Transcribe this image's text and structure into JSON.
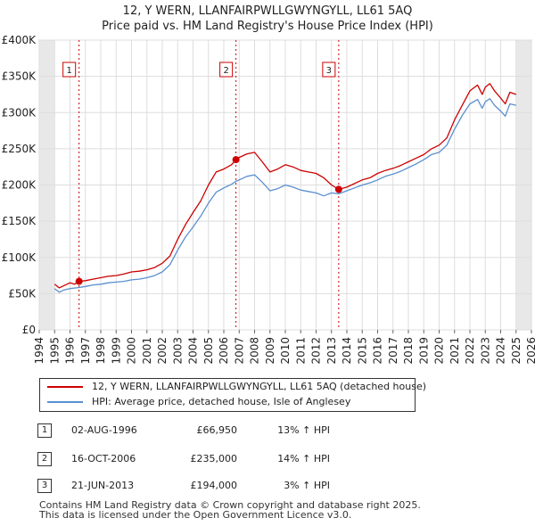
{
  "title_line1": "12, Y WERN, LLANFAIRPWLLGWYNGYLL, LL61 5AQ",
  "title_line2": "Price paid vs. HM Land Registry's House Price Index (HPI)",
  "chart_data": {
    "type": "line",
    "xlim": [
      1994,
      2026
    ],
    "ylim": [
      0,
      400000
    ],
    "x_ticks": [
      1994,
      1995,
      1996,
      1997,
      1998,
      1999,
      2000,
      2001,
      2002,
      2003,
      2004,
      2005,
      2006,
      2007,
      2008,
      2009,
      2010,
      2011,
      2012,
      2013,
      2014,
      2015,
      2016,
      2017,
      2018,
      2019,
      2020,
      2021,
      2022,
      2023,
      2024,
      2025,
      2026
    ],
    "y_ticks": [
      {
        "value": 0,
        "label": "£0"
      },
      {
        "value": 50000,
        "label": "£50K"
      },
      {
        "value": 100000,
        "label": "£100K"
      },
      {
        "value": 150000,
        "label": "£150K"
      },
      {
        "value": 200000,
        "label": "£200K"
      },
      {
        "value": 250000,
        "label": "£250K"
      },
      {
        "value": 300000,
        "label": "£300K"
      },
      {
        "value": 350000,
        "label": "£350K"
      },
      {
        "value": 400000,
        "label": "£400K"
      }
    ],
    "data_range": [
      1995.0,
      2025.0
    ],
    "series": [
      {
        "name": "12, Y WERN, LLANFAIRPWLLGWYNGYLL, LL61 5AQ (detached house)",
        "color": "#cc0000",
        "points": [
          [
            1995.0,
            63000
          ],
          [
            1995.3,
            58000
          ],
          [
            1995.6,
            61000
          ],
          [
            1996.0,
            65000
          ],
          [
            1996.3,
            63000
          ],
          [
            1996.59,
            66950
          ],
          [
            1997.0,
            68000
          ],
          [
            1997.5,
            70000
          ],
          [
            1998.0,
            72000
          ],
          [
            1998.5,
            74000
          ],
          [
            1999.0,
            75000
          ],
          [
            1999.5,
            77000
          ],
          [
            2000.0,
            80000
          ],
          [
            2000.5,
            81000
          ],
          [
            2001.0,
            83000
          ],
          [
            2001.5,
            86000
          ],
          [
            2002.0,
            92000
          ],
          [
            2002.5,
            102000
          ],
          [
            2003.0,
            125000
          ],
          [
            2003.5,
            145000
          ],
          [
            2004.0,
            162000
          ],
          [
            2004.5,
            178000
          ],
          [
            2005.0,
            200000
          ],
          [
            2005.5,
            218000
          ],
          [
            2006.0,
            222000
          ],
          [
            2006.5,
            228000
          ],
          [
            2006.79,
            235000
          ],
          [
            2007.0,
            238000
          ],
          [
            2007.5,
            243000
          ],
          [
            2008.0,
            245000
          ],
          [
            2008.5,
            232000
          ],
          [
            2009.0,
            218000
          ],
          [
            2009.5,
            222000
          ],
          [
            2010.0,
            228000
          ],
          [
            2010.5,
            225000
          ],
          [
            2011.0,
            220000
          ],
          [
            2011.5,
            218000
          ],
          [
            2012.0,
            216000
          ],
          [
            2012.5,
            210000
          ],
          [
            2013.0,
            200000
          ],
          [
            2013.47,
            194000
          ],
          [
            2014.0,
            197000
          ],
          [
            2014.5,
            202000
          ],
          [
            2015.0,
            207000
          ],
          [
            2015.5,
            210000
          ],
          [
            2016.0,
            216000
          ],
          [
            2016.5,
            220000
          ],
          [
            2017.0,
            223000
          ],
          [
            2017.5,
            227000
          ],
          [
            2018.0,
            232000
          ],
          [
            2018.5,
            237000
          ],
          [
            2019.0,
            242000
          ],
          [
            2019.5,
            250000
          ],
          [
            2020.0,
            255000
          ],
          [
            2020.5,
            265000
          ],
          [
            2021.0,
            290000
          ],
          [
            2021.5,
            310000
          ],
          [
            2022.0,
            330000
          ],
          [
            2022.5,
            338000
          ],
          [
            2022.8,
            325000
          ],
          [
            2023.0,
            335000
          ],
          [
            2023.3,
            340000
          ],
          [
            2023.6,
            330000
          ],
          [
            2024.0,
            320000
          ],
          [
            2024.3,
            312000
          ],
          [
            2024.6,
            328000
          ],
          [
            2025.0,
            325000
          ]
        ]
      },
      {
        "name": "HPI: Average price, detached house, Isle of Anglesey",
        "color": "#5b8fd0",
        "points": [
          [
            1995.0,
            57000
          ],
          [
            1995.3,
            52000
          ],
          [
            1995.6,
            55000
          ],
          [
            1996.0,
            57000
          ],
          [
            1996.59,
            58500
          ],
          [
            1997.0,
            60000
          ],
          [
            1997.5,
            62000
          ],
          [
            1998.0,
            63000
          ],
          [
            1998.5,
            65000
          ],
          [
            1999.0,
            66000
          ],
          [
            1999.5,
            67000
          ],
          [
            2000.0,
            69000
          ],
          [
            2000.5,
            70000
          ],
          [
            2001.0,
            72000
          ],
          [
            2001.5,
            75000
          ],
          [
            2002.0,
            80000
          ],
          [
            2002.5,
            90000
          ],
          [
            2003.0,
            110000
          ],
          [
            2003.5,
            128000
          ],
          [
            2004.0,
            142000
          ],
          [
            2004.5,
            157000
          ],
          [
            2005.0,
            175000
          ],
          [
            2005.5,
            190000
          ],
          [
            2006.0,
            196000
          ],
          [
            2006.5,
            201000
          ],
          [
            2006.79,
            205000
          ],
          [
            2007.0,
            207000
          ],
          [
            2007.5,
            212000
          ],
          [
            2008.0,
            214000
          ],
          [
            2008.5,
            204000
          ],
          [
            2009.0,
            192000
          ],
          [
            2009.5,
            195000
          ],
          [
            2010.0,
            200000
          ],
          [
            2010.5,
            197000
          ],
          [
            2011.0,
            193000
          ],
          [
            2011.5,
            191000
          ],
          [
            2012.0,
            189000
          ],
          [
            2012.5,
            185000
          ],
          [
            2013.0,
            189000
          ],
          [
            2013.47,
            188000
          ],
          [
            2014.0,
            192000
          ],
          [
            2014.5,
            196000
          ],
          [
            2015.0,
            200000
          ],
          [
            2015.5,
            203000
          ],
          [
            2016.0,
            207000
          ],
          [
            2016.5,
            212000
          ],
          [
            2017.0,
            215000
          ],
          [
            2017.5,
            219000
          ],
          [
            2018.0,
            224000
          ],
          [
            2018.5,
            229000
          ],
          [
            2019.0,
            235000
          ],
          [
            2019.5,
            242000
          ],
          [
            2020.0,
            245000
          ],
          [
            2020.5,
            255000
          ],
          [
            2021.0,
            277000
          ],
          [
            2021.5,
            296000
          ],
          [
            2022.0,
            312000
          ],
          [
            2022.5,
            318000
          ],
          [
            2022.8,
            306000
          ],
          [
            2023.0,
            315000
          ],
          [
            2023.3,
            319000
          ],
          [
            2023.6,
            310000
          ],
          [
            2024.0,
            302000
          ],
          [
            2024.3,
            295000
          ],
          [
            2024.6,
            312000
          ],
          [
            2025.0,
            310000
          ]
        ]
      }
    ],
    "sales": [
      {
        "label": "1",
        "x": 1996.59,
        "y": 66950
      },
      {
        "label": "2",
        "x": 2006.79,
        "y": 235000
      },
      {
        "label": "3",
        "x": 2013.47,
        "y": 194000
      }
    ]
  },
  "legend": {
    "property": "12, Y WERN, LLANFAIRPWLLGWYNGYLL, LL61 5AQ (detached house)",
    "hpi": "HPI: Average price, detached house, Isle of Anglesey"
  },
  "transactions": [
    {
      "num": "1",
      "date": "02-AUG-1996",
      "price": "£66,950",
      "hpi": "13% ↑ HPI"
    },
    {
      "num": "2",
      "date": "16-OCT-2006",
      "price": "£235,000",
      "hpi": "14% ↑ HPI"
    },
    {
      "num": "3",
      "date": "21-JUN-2013",
      "price": "£194,000",
      "hpi": "3% ↑ HPI"
    }
  ],
  "footer_line1": "Contains HM Land Registry data © Crown copyright and database right 2025.",
  "footer_line2": "This data is licensed under the Open Government Licence v3.0."
}
